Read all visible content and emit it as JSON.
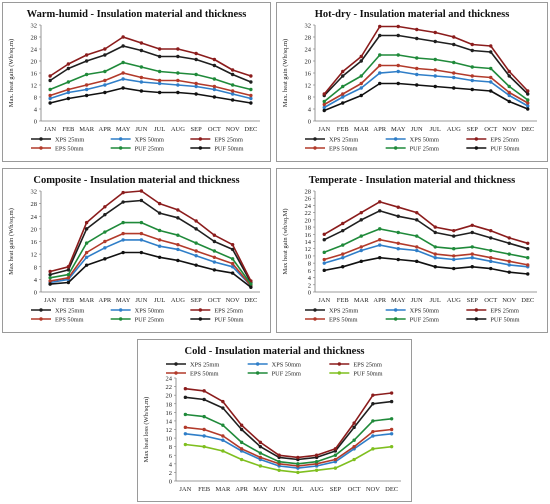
{
  "chart_data": [
    {
      "type": "line",
      "title": "Warm-humid - Insulation material and thickness",
      "ylabel": "Max. heat gain (Wh/sq.m)",
      "ylim": [
        0,
        32
      ],
      "yticks": [
        0,
        4,
        8,
        12,
        16,
        20,
        24,
        28,
        32
      ],
      "categories": [
        "JAN",
        "FEB",
        "MAR",
        "APR",
        "MAY",
        "JUN",
        "JUL",
        "AUG",
        "SEP",
        "OCT",
        "NOV",
        "DEC"
      ],
      "grid": false,
      "legend_position": "bottom",
      "series": [
        {
          "name": "XPS 25mm",
          "color": "#1f1f1f",
          "values": [
            13.5,
            17.5,
            20,
            22,
            25,
            23.5,
            21.5,
            21.5,
            20.5,
            18.5,
            15.5,
            13
          ]
        },
        {
          "name": "XPS 50mm",
          "color": "#2f7ec8",
          "values": [
            7.5,
            9.5,
            10.5,
            12,
            14,
            13,
            12.5,
            12,
            11.5,
            10.5,
            9,
            7.5
          ]
        },
        {
          "name": "EPS 25mm",
          "color": "#8b1c1c",
          "values": [
            15,
            19,
            22,
            24,
            28,
            26,
            24,
            24,
            22.5,
            20.5,
            17,
            15
          ]
        },
        {
          "name": "EPS 50mm",
          "color": "#b23a2a",
          "values": [
            8.5,
            10.5,
            12,
            13.5,
            16,
            14.5,
            13.5,
            13.5,
            12.5,
            11.5,
            10,
            8.5
          ]
        },
        {
          "name": "PUF 25mm",
          "color": "#1f8a3a",
          "values": [
            10.5,
            13,
            15.5,
            16.5,
            19.5,
            18,
            16.5,
            16,
            15.5,
            14,
            12,
            10.5
          ]
        },
        {
          "name": "PUF 50mm",
          "color": "#111111",
          "values": [
            6,
            7.5,
            8.5,
            9.5,
            11,
            10,
            9.5,
            9.5,
            9,
            8,
            7,
            6
          ]
        }
      ]
    },
    {
      "type": "line",
      "title": "Hot-dry - Insulation material and thickness",
      "ylabel": "Max. heat gain (Wh/sq.m)",
      "ylim": [
        0,
        32
      ],
      "yticks": [
        0,
        4,
        8,
        12,
        16,
        20,
        24,
        28,
        32
      ],
      "categories": [
        "JAN",
        "FEB",
        "MAR",
        "APR",
        "MAY",
        "JUN",
        "JUL",
        "AUG",
        "SEP",
        "OCT",
        "NOV",
        "DEC"
      ],
      "grid": false,
      "legend_position": "bottom",
      "series": [
        {
          "name": "XPS 25mm",
          "color": "#1f1f1f",
          "values": [
            8.5,
            15,
            20,
            28.5,
            28.5,
            27.5,
            26.5,
            25.5,
            23.5,
            23,
            15,
            9
          ]
        },
        {
          "name": "XPS 50mm",
          "color": "#2f7ec8",
          "values": [
            4.5,
            8,
            11,
            16,
            16.5,
            15.5,
            15,
            14.5,
            13.5,
            13,
            8.5,
            5
          ]
        },
        {
          "name": "EPS 25mm",
          "color": "#8b1c1c",
          "values": [
            9,
            16.5,
            21.5,
            31.5,
            31.5,
            30.5,
            29.5,
            28,
            25.5,
            25,
            16.5,
            10
          ]
        },
        {
          "name": "EPS 50mm",
          "color": "#b23a2a",
          "values": [
            5.5,
            9,
            12.5,
            18.5,
            18.5,
            17.5,
            17,
            16,
            15,
            14.5,
            9.5,
            6
          ]
        },
        {
          "name": "PUF 25mm",
          "color": "#1f8a3a",
          "values": [
            6.5,
            11.5,
            15,
            22,
            22,
            21,
            20.5,
            19.5,
            18,
            17.5,
            11.5,
            7
          ]
        },
        {
          "name": "PUF 50mm",
          "color": "#111111",
          "values": [
            3.5,
            6,
            8.5,
            12.5,
            12.5,
            12,
            11.5,
            11,
            10.5,
            10,
            6.5,
            4
          ]
        }
      ]
    },
    {
      "type": "line",
      "title": "Composite - Insulation material and thickness",
      "ylabel": "Max heat gain (Wh/sq.m)",
      "ylim": [
        0,
        32
      ],
      "yticks": [
        0,
        4,
        8,
        12,
        16,
        20,
        24,
        28,
        32
      ],
      "categories": [
        "JAN",
        "FEB",
        "MAR",
        "APR",
        "MAY",
        "JUN",
        "JUL",
        "AUG",
        "SEP",
        "OCT",
        "NOV",
        "DEC"
      ],
      "grid": false,
      "legend_position": "bottom",
      "series": [
        {
          "name": "XPS 25mm",
          "color": "#1f1f1f",
          "values": [
            5.5,
            7,
            20,
            24.5,
            28.5,
            29,
            25,
            23.5,
            20,
            16,
            13.5,
            3
          ]
        },
        {
          "name": "XPS 50mm",
          "color": "#2f7ec8",
          "values": [
            3,
            4,
            11,
            14,
            16.5,
            16.5,
            14.5,
            13.5,
            11.5,
            9.5,
            8,
            2
          ]
        },
        {
          "name": "EPS 25mm",
          "color": "#8b1c1c",
          "values": [
            6.5,
            8,
            22,
            27,
            31.5,
            32,
            28,
            26,
            22.5,
            18,
            15,
            3.5
          ]
        },
        {
          "name": "EPS 50mm",
          "color": "#b23a2a",
          "values": [
            3.5,
            4.5,
            12.5,
            16,
            18.5,
            18.5,
            16.5,
            15,
            13,
            11,
            9,
            2
          ]
        },
        {
          "name": "PUF 25mm",
          "color": "#1f8a3a",
          "values": [
            4.5,
            5.5,
            15.5,
            19,
            22,
            22,
            19.5,
            18,
            15.5,
            13,
            10.5,
            2.5
          ]
        },
        {
          "name": "PUF 50mm",
          "color": "#111111",
          "values": [
            2.5,
            3,
            8.5,
            10.5,
            12.5,
            12.5,
            11,
            10,
            8.5,
            7,
            6,
            1.5
          ]
        }
      ]
    },
    {
      "type": "line",
      "title": "Temperate - Insulation material and thickness",
      "ylabel": "Max heat gain (wh/sq.M)",
      "ylim": [
        0,
        28
      ],
      "yticks": [
        0,
        2,
        4,
        6,
        8,
        10,
        12,
        14,
        16,
        18,
        20,
        22,
        24,
        26,
        28
      ],
      "categories": [
        "JAN",
        "FEB",
        "MAR",
        "APR",
        "MAY",
        "JUN",
        "JUL",
        "AUG",
        "SEP",
        "OCT",
        "NOV",
        "DEC"
      ],
      "grid": false,
      "legend_position": "bottom",
      "series": [
        {
          "name": "XPS 25mm",
          "color": "#1f1f1f",
          "values": [
            14.5,
            17,
            20,
            22.5,
            21,
            20,
            16.5,
            15.5,
            16.5,
            15,
            13.5,
            12
          ]
        },
        {
          "name": "XPS 50mm",
          "color": "#2f7ec8",
          "values": [
            8,
            9.5,
            11.5,
            13,
            12,
            11.5,
            9.5,
            9,
            9.5,
            8.5,
            7.5,
            7
          ]
        },
        {
          "name": "EPS 25mm",
          "color": "#8b1c1c",
          "values": [
            16,
            19,
            22,
            25,
            23.5,
            22,
            18,
            17,
            18.5,
            17,
            15,
            13.5
          ]
        },
        {
          "name": "EPS 50mm",
          "color": "#b23a2a",
          "values": [
            9,
            10.5,
            12.5,
            14.5,
            13.5,
            12.5,
            10.5,
            10,
            10.5,
            9.5,
            8.5,
            7.5
          ]
        },
        {
          "name": "PUF 25mm",
          "color": "#1f8a3a",
          "values": [
            11,
            13,
            15.5,
            17.5,
            16.5,
            15.5,
            12.5,
            12,
            12.5,
            11.5,
            10.5,
            9.5
          ]
        },
        {
          "name": "PUF 50mm",
          "color": "#111111",
          "values": [
            6,
            7,
            8.5,
            9.5,
            9,
            8.5,
            7,
            6.5,
            7,
            6.5,
            5.5,
            5
          ]
        }
      ]
    },
    {
      "type": "line",
      "title": "Cold - Insulation material and thickness",
      "ylabel": "Max heat loss (Wh/sq.m)",
      "ylim": [
        0,
        24
      ],
      "yticks": [
        0,
        2,
        4,
        6,
        8,
        10,
        12,
        14,
        16,
        18,
        20,
        22,
        24
      ],
      "categories": [
        "JAN",
        "FEB",
        "MAR",
        "APR",
        "MAY",
        "JUN",
        "JUL",
        "AUG",
        "SEP",
        "OCT",
        "NOV",
        "DEC"
      ],
      "grid": false,
      "legend_position": "top",
      "series": [
        {
          "name": "XPS 25mm",
          "color": "#1f1f1f",
          "values": [
            19.5,
            19,
            17,
            12,
            8,
            5.5,
            5,
            5.5,
            7,
            12.5,
            18,
            18.5
          ]
        },
        {
          "name": "XPS 50mm",
          "color": "#2f7ec8",
          "values": [
            11,
            10.5,
            9.5,
            7,
            5,
            3.5,
            3,
            3.5,
            4.5,
            7.5,
            10.5,
            11
          ]
        },
        {
          "name": "EPS 25mm",
          "color": "#8b1c1c",
          "values": [
            21.5,
            21,
            18.5,
            13,
            9,
            6,
            5.5,
            6,
            7.5,
            13.5,
            20,
            20.5
          ]
        },
        {
          "name": "EPS 50mm",
          "color": "#b23a2a",
          "values": [
            12.5,
            12,
            10.5,
            7.5,
            5.5,
            4,
            3.5,
            4,
            5,
            8,
            11.5,
            12
          ]
        },
        {
          "name": "PUF 25mm",
          "color": "#1f8a3a",
          "values": [
            15.5,
            15,
            13,
            9,
            6.5,
            4.5,
            4,
            4.5,
            6,
            9.5,
            14,
            14.5
          ]
        },
        {
          "name": "PUF 50mm",
          "color": "#7fbf1f",
          "values": [
            8.5,
            8,
            7,
            5,
            3.5,
            2.5,
            2,
            2.5,
            3,
            5,
            7.5,
            8
          ]
        }
      ]
    }
  ]
}
